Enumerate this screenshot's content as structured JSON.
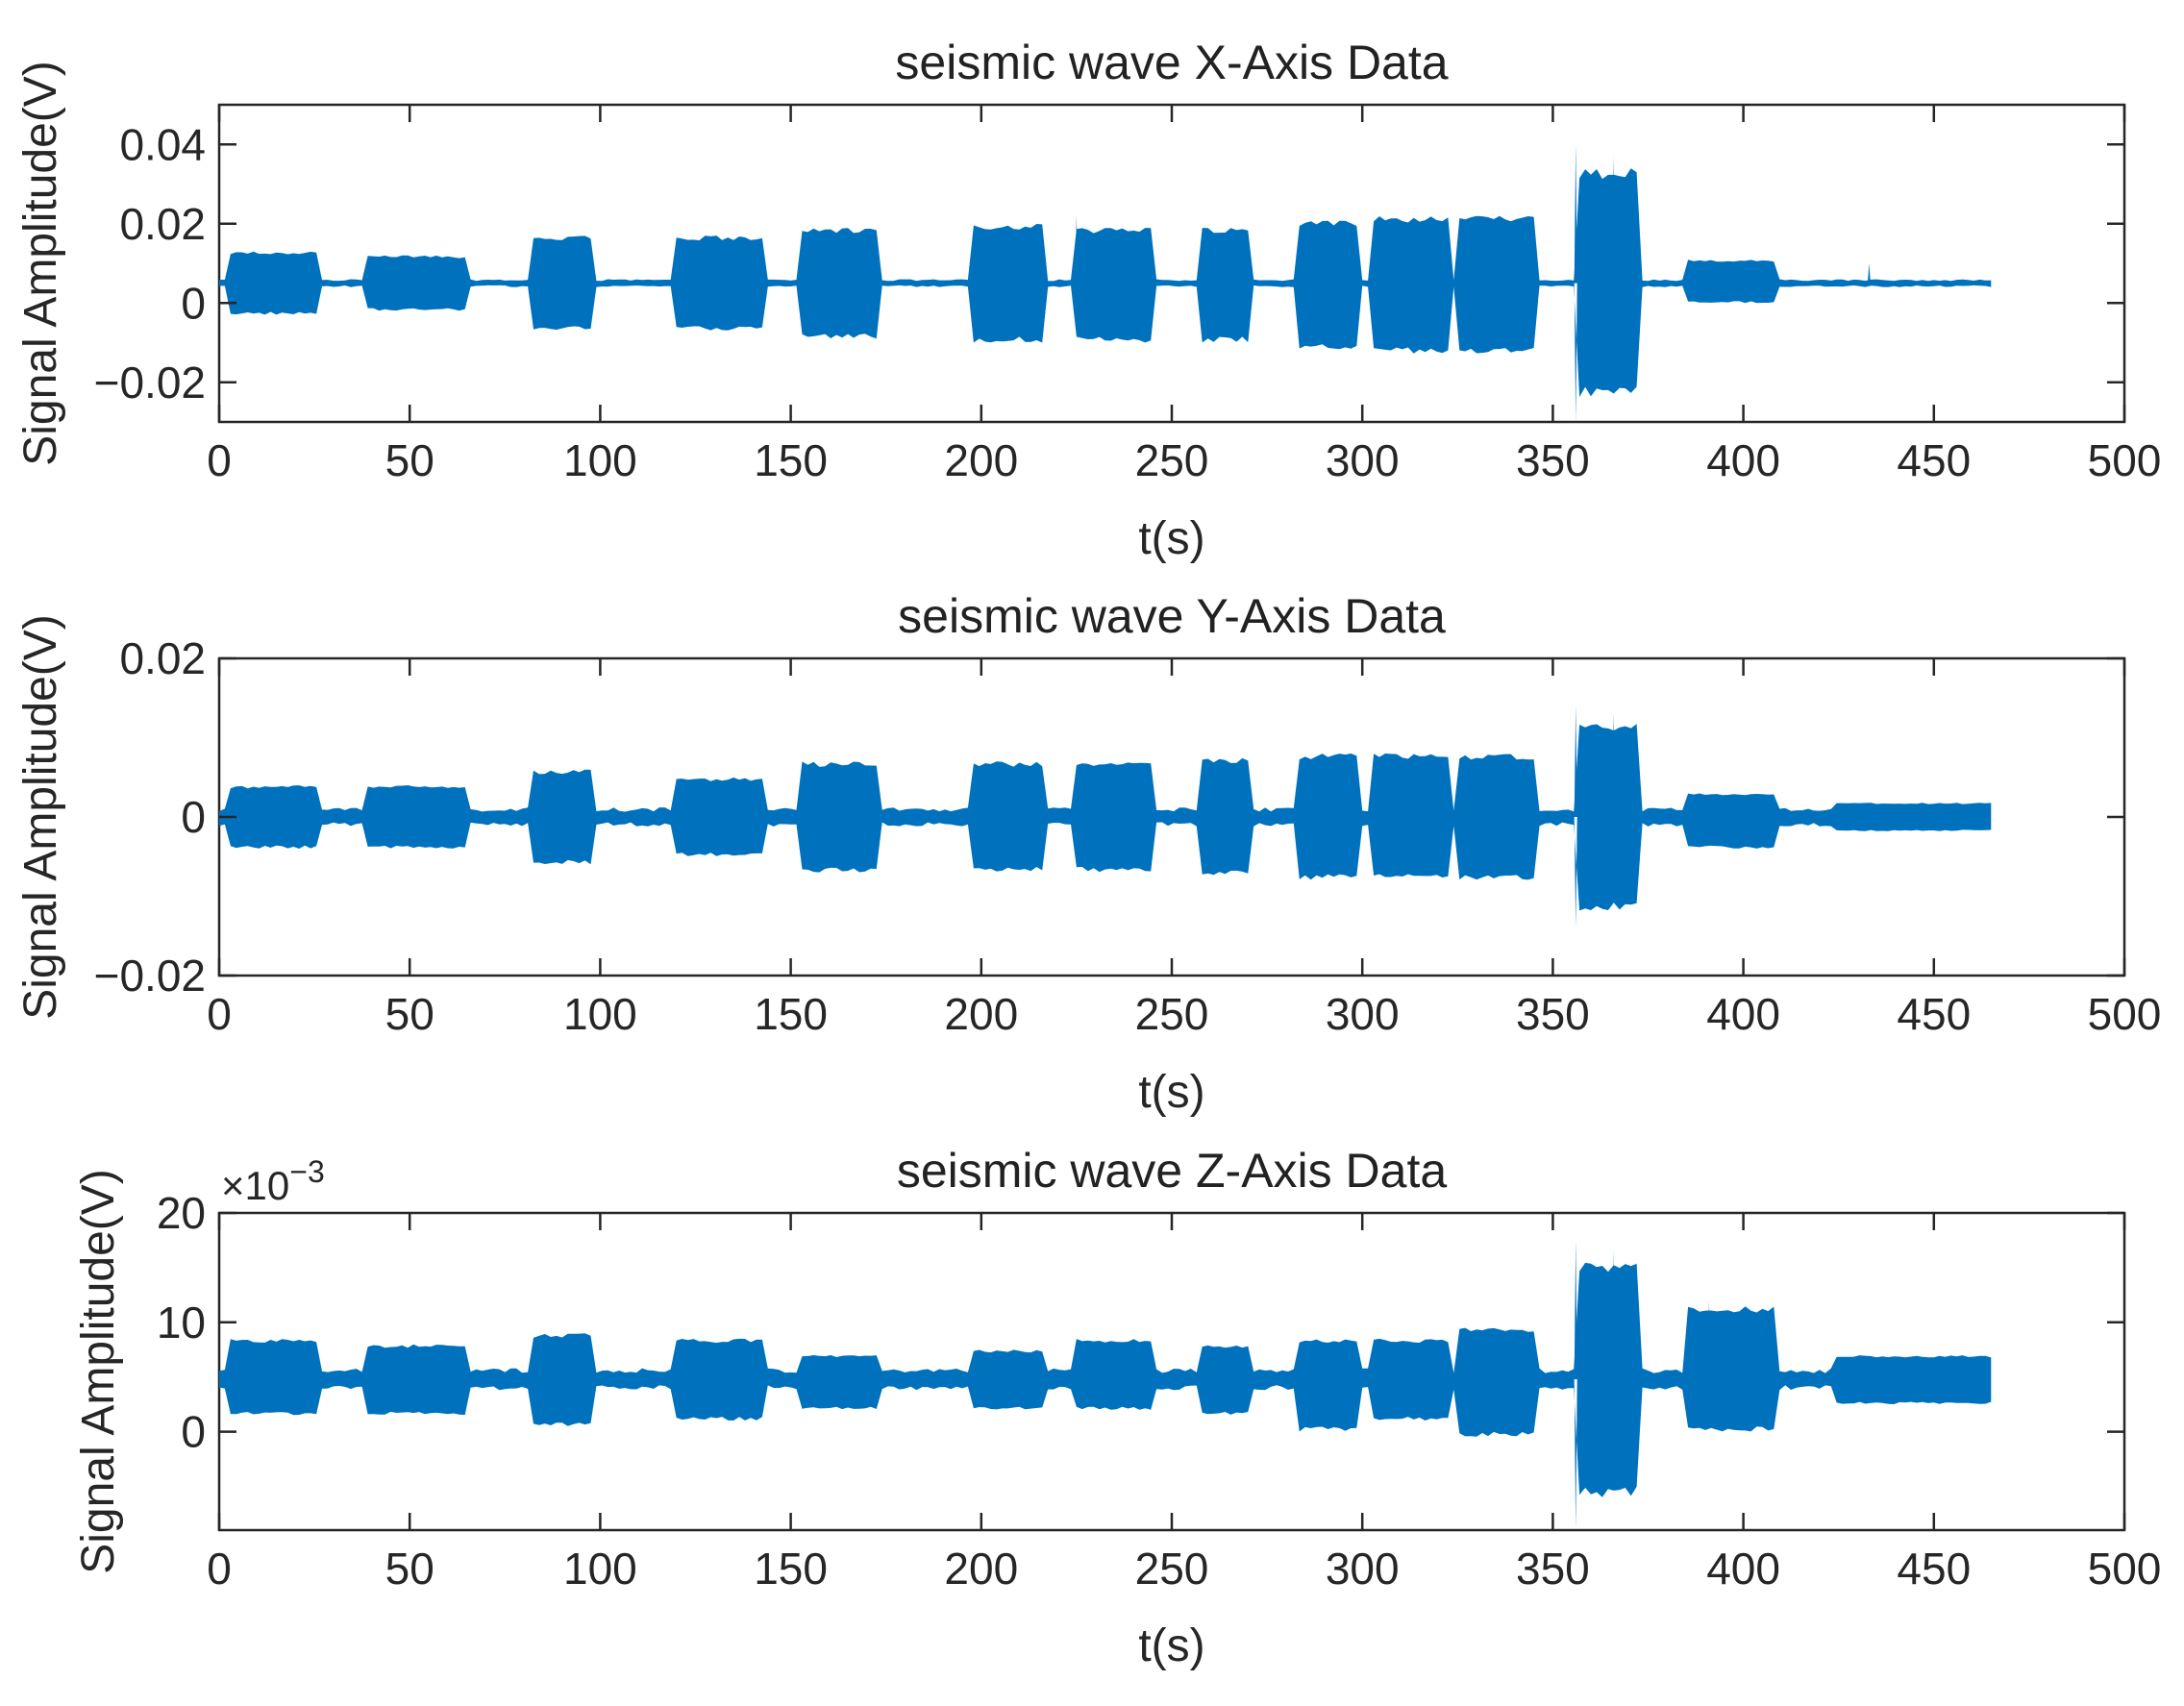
{
  "chart_data": [
    {
      "type": "line",
      "title": "seismic wave X-Axis Data",
      "xlabel": "t(s)",
      "ylabel": "Signal Amplitude(V)",
      "xlim": [
        0,
        500
      ],
      "ylim": [
        -0.03,
        0.05
      ],
      "x_ticks": [
        0,
        50,
        100,
        150,
        200,
        250,
        300,
        350,
        400,
        450,
        500
      ],
      "x_tick_labels": [
        "0",
        "50",
        "100",
        "150",
        "200",
        "250",
        "300",
        "350",
        "400",
        "450",
        "500"
      ],
      "y_ticks": [
        -0.02,
        0,
        0.02,
        0.04
      ],
      "y_tick_labels": [
        "−0.02",
        "0",
        "0.02",
        "0.04"
      ],
      "y_exponent_label": "",
      "series_color": "#0072BD",
      "grid": false,
      "baseline": {
        "center": 0.005,
        "noise_halfwidth": 0.001
      },
      "x_end": 466,
      "bursts": [
        {
          "start": 2,
          "end": 26,
          "max": 0.013,
          "min": -0.003
        },
        {
          "start": 38,
          "end": 65,
          "max": 0.012,
          "min": -0.002
        },
        {
          "start": 82,
          "end": 98,
          "max": 0.017,
          "min": -0.007
        },
        {
          "start": 120,
          "end": 143,
          "max": 0.017,
          "min": -0.007
        },
        {
          "start": 153,
          "end": 173,
          "max": 0.019,
          "min": -0.009
        },
        {
          "start": 197,
          "end": 216,
          "max": 0.02,
          "min": -0.01
        },
        {
          "start": 225,
          "end": 245,
          "max": 0.019,
          "min": -0.01
        },
        {
          "start": 258,
          "end": 271,
          "max": 0.019,
          "min": -0.01
        },
        {
          "start": 283,
          "end": 299,
          "max": 0.021,
          "min": -0.012
        },
        {
          "start": 303,
          "end": 323,
          "max": 0.022,
          "min": -0.013
        },
        {
          "start": 325,
          "end": 345,
          "max": 0.022,
          "min": -0.013
        },
        {
          "start": 356,
          "end": 373,
          "max": 0.034,
          "min": -0.024
        },
        {
          "start": 385,
          "end": 408,
          "max": 0.011,
          "min": 0.0
        }
      ],
      "spikes": [
        {
          "x": 225,
          "y": 0.022
        },
        {
          "x": 356,
          "y": 0.04
        },
        {
          "x": 356,
          "y": -0.03
        },
        {
          "x": 366,
          "y": 0.037
        },
        {
          "x": 433,
          "y": 0.01
        }
      ]
    },
    {
      "type": "line",
      "title": "seismic wave Y-Axis Data",
      "xlabel": "t(s)",
      "ylabel": "Signal Amplitude(V)",
      "xlim": [
        0,
        500
      ],
      "ylim": [
        -0.02,
        0.02
      ],
      "x_ticks": [
        0,
        50,
        100,
        150,
        200,
        250,
        300,
        350,
        400,
        450,
        500
      ],
      "x_tick_labels": [
        "0",
        "50",
        "100",
        "150",
        "200",
        "250",
        "300",
        "350",
        "400",
        "450",
        "500"
      ],
      "y_ticks": [
        -0.02,
        0,
        0.02
      ],
      "y_tick_labels": [
        "−0.02",
        "0",
        "0.02"
      ],
      "y_exponent_label": "",
      "series_color": "#0072BD",
      "grid": false,
      "baseline": {
        "center": 0.0,
        "noise_halfwidth": 0.0012
      },
      "x_end": 466,
      "bursts": [
        {
          "start": 2,
          "end": 26,
          "max": 0.004,
          "min": -0.004
        },
        {
          "start": 38,
          "end": 65,
          "max": 0.004,
          "min": -0.004
        },
        {
          "start": 82,
          "end": 98,
          "max": 0.006,
          "min": -0.006
        },
        {
          "start": 120,
          "end": 143,
          "max": 0.005,
          "min": -0.005
        },
        {
          "start": 153,
          "end": 173,
          "max": 0.007,
          "min": -0.007
        },
        {
          "start": 197,
          "end": 216,
          "max": 0.007,
          "min": -0.007
        },
        {
          "start": 225,
          "end": 245,
          "max": 0.007,
          "min": -0.007
        },
        {
          "start": 258,
          "end": 271,
          "max": 0.0075,
          "min": -0.0075
        },
        {
          "start": 283,
          "end": 299,
          "max": 0.008,
          "min": -0.008
        },
        {
          "start": 303,
          "end": 323,
          "max": 0.008,
          "min": -0.008
        },
        {
          "start": 325,
          "end": 345,
          "max": 0.008,
          "min": -0.008
        },
        {
          "start": 356,
          "end": 373,
          "max": 0.012,
          "min": -0.012
        },
        {
          "start": 385,
          "end": 408,
          "max": 0.003,
          "min": -0.004
        },
        {
          "start": 424,
          "end": 466,
          "max": 0.0018,
          "min": -0.0018
        }
      ],
      "spikes": [
        {
          "x": 356,
          "y": 0.014
        },
        {
          "x": 356,
          "y": -0.014
        },
        {
          "x": 366,
          "y": 0.013
        }
      ]
    },
    {
      "type": "line",
      "title": "seismic wave Z-Axis Data",
      "xlabel": "t(s)",
      "ylabel": "Signal Amplitude(V)",
      "xlim": [
        0,
        500
      ],
      "ylim": [
        -9,
        20
      ],
      "x_ticks": [
        0,
        50,
        100,
        150,
        200,
        250,
        300,
        350,
        400,
        450,
        500
      ],
      "x_tick_labels": [
        "0",
        "50",
        "100",
        "150",
        "200",
        "250",
        "300",
        "350",
        "400",
        "450",
        "500"
      ],
      "y_ticks": [
        0,
        10,
        20
      ],
      "y_tick_labels": [
        "0",
        "10",
        "20"
      ],
      "y_exponent_label": "×10",
      "y_exponent_power": "−3",
      "series_color": "#0072BD",
      "grid": false,
      "baseline": {
        "center": 4.8,
        "noise_halfwidth": 1.0
      },
      "x_end": 466,
      "bursts": [
        {
          "start": 2,
          "end": 26,
          "max": 8.5,
          "min": 1.5
        },
        {
          "start": 38,
          "end": 65,
          "max": 8.0,
          "min": 1.5
        },
        {
          "start": 82,
          "end": 98,
          "max": 9.0,
          "min": 0.5
        },
        {
          "start": 120,
          "end": 143,
          "max": 8.5,
          "min": 1.0
        },
        {
          "start": 153,
          "end": 173,
          "max": 7.0,
          "min": 2.0
        },
        {
          "start": 197,
          "end": 216,
          "max": 7.5,
          "min": 2.0
        },
        {
          "start": 225,
          "end": 245,
          "max": 8.5,
          "min": 2.0
        },
        {
          "start": 258,
          "end": 271,
          "max": 8.0,
          "min": 1.5
        },
        {
          "start": 283,
          "end": 299,
          "max": 8.5,
          "min": 0.0
        },
        {
          "start": 303,
          "end": 323,
          "max": 8.5,
          "min": 1.0
        },
        {
          "start": 325,
          "end": 345,
          "max": 9.5,
          "min": -0.5
        },
        {
          "start": 356,
          "end": 373,
          "max": 15.5,
          "min": -6.0
        },
        {
          "start": 385,
          "end": 408,
          "max": 11.5,
          "min": 0.0
        },
        {
          "start": 424,
          "end": 466,
          "max": 7.0,
          "min": 2.5
        }
      ],
      "spikes": [
        {
          "x": 356,
          "y": 17.5
        },
        {
          "x": 356,
          "y": -9.0
        },
        {
          "x": 366,
          "y": 16.5
        },
        {
          "x": 391,
          "y": 12.0
        }
      ]
    }
  ]
}
